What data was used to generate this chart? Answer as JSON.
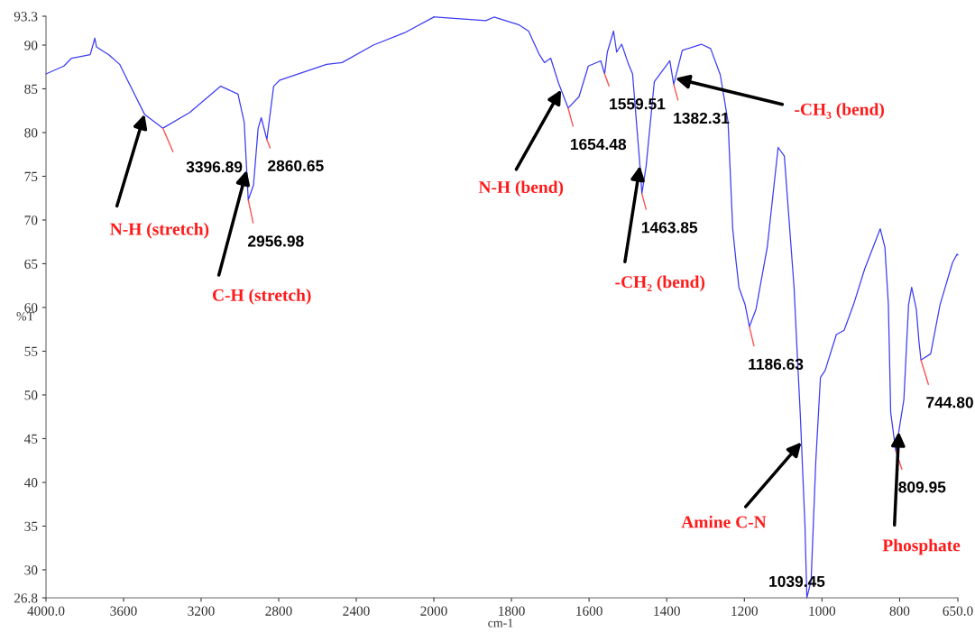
{
  "chart_data": [
    {
      "type": "line",
      "ylabel": "%T",
      "xlim": [
        4000,
        2000
      ],
      "ylim": [
        26.8,
        93.3
      ],
      "xticks": [
        {
          "value": 4000,
          "label": "4000.0"
        },
        3600,
        3200,
        2800,
        2400
      ],
      "yticks": [
        26.8,
        30,
        35,
        40,
        45,
        50,
        55,
        60,
        65,
        70,
        75,
        80,
        85,
        90,
        93.3
      ],
      "grid": false,
      "line_style": "solid",
      "marker": "none",
      "series": [
        {
          "color": "#3c3cf5",
          "x": [
            4000,
            3908,
            3868,
            3772,
            3748,
            3740,
            3676,
            3620,
            3580,
            3492,
            3397,
            3259,
            3099,
            3010,
            2978,
            2957,
            2930,
            2906,
            2890,
            2861,
            2826,
            2794,
            2553,
            2473,
            2312,
            2152,
            2000
          ],
          "values": [
            86.7,
            87.6,
            88.5,
            88.9,
            90.8,
            89.8,
            88.9,
            87.8,
            86.0,
            82.1,
            80.5,
            82.3,
            85.3,
            84.4,
            81.2,
            72.3,
            74.0,
            80.5,
            81.7,
            79.2,
            85.3,
            86.0,
            87.8,
            88.0,
            90.0,
            91.4,
            93.2
          ]
        }
      ],
      "annotations": [
        {
          "text": "3396.89",
          "x": 3397,
          "y": 80.5
        },
        {
          "text": "2956.98",
          "x": 2957,
          "y": 72.3
        },
        {
          "text": "2860.65",
          "x": 2861,
          "y": 79.2
        },
        {
          "text": "N-H (stretch)",
          "x": 3492,
          "y": 82.1
        },
        {
          "text": "C-H (stretch)",
          "x": 2965,
          "y": 75.7
        }
      ]
    },
    {
      "type": "line",
      "xlabel": "cm-1",
      "xlim": [
        2000,
        650
      ],
      "ylim": [
        26.8,
        93.3
      ],
      "xticks": [
        2000,
        1800,
        1600,
        1400,
        1200,
        1000,
        800,
        {
          "value": 650,
          "label": "650.0"
        }
      ],
      "tick_labels": "x",
      "grid": false,
      "line_style": "solid",
      "marker": "none",
      "series": [
        {
          "color": "#3c3cf5",
          "x": [
            2000,
            1996,
            1931,
            1866,
            1845,
            1780,
            1756,
            1728,
            1715,
            1699,
            1679,
            1654,
            1626,
            1602,
            1570,
            1560,
            1553,
            1537,
            1529,
            1516,
            1500,
            1488,
            1469,
            1464,
            1453,
            1432,
            1392,
            1382,
            1360,
            1311,
            1287,
            1262,
            1242,
            1230,
            1222,
            1214,
            1198,
            1187,
            1170,
            1141,
            1113,
            1097,
            1072,
            1064,
            1056,
            1044,
            1039,
            1028,
            1016,
            1004,
            992,
            963,
            943,
            919,
            890,
            850,
            838,
            829,
            823,
            810,
            789,
            777,
            769,
            757,
            750,
            745,
            720,
            696,
            664,
            652,
            650
          ],
          "values": [
            93.2,
            93.2,
            93.0,
            92.8,
            93.2,
            92.3,
            91.6,
            88.9,
            88.0,
            88.5,
            85.7,
            82.8,
            84.1,
            87.6,
            88.2,
            86.7,
            89.2,
            91.6,
            89.2,
            90.1,
            88.0,
            86.7,
            76.2,
            73.0,
            76.2,
            85.8,
            88.2,
            85.5,
            89.4,
            90.1,
            89.6,
            86.6,
            81.2,
            69.0,
            65.5,
            62.3,
            60.3,
            57.8,
            59.8,
            66.9,
            78.3,
            77.3,
            62.3,
            54.9,
            47.8,
            35.2,
            26.8,
            28.8,
            42.4,
            52.0,
            52.8,
            56.9,
            57.4,
            60.3,
            64.4,
            69.0,
            66.9,
            60.3,
            48.0,
            43.6,
            49.5,
            60.3,
            62.3,
            59.8,
            56.0,
            54.0,
            54.7,
            60.3,
            65.1,
            66.1,
            66.0
          ]
        }
      ],
      "annotations": [
        {
          "text": "1654.48",
          "x": 1654,
          "y": 82.8
        },
        {
          "text": "1559.51",
          "x": 1560,
          "y": 86.7
        },
        {
          "text": "1463.85",
          "x": 1464,
          "y": 73.0
        },
        {
          "text": "1382.31",
          "x": 1382,
          "y": 85.5
        },
        {
          "text": "1186.63",
          "x": 1187,
          "y": 57.8
        },
        {
          "text": "1039.45",
          "x": 1039,
          "y": 26.8
        },
        {
          "text": "809.95",
          "x": 810,
          "y": 43.6
        },
        {
          "text": "744.80",
          "x": 745,
          "y": 54.0
        },
        {
          "text": "N-H (bend)",
          "x": 1672,
          "y": 84.9
        },
        {
          "text": "-CH₂ (bend)",
          "x": 1469,
          "y": 76.2
        },
        {
          "text": "-CH₃ (bend)",
          "x": 1378,
          "y": 86.2
        },
        {
          "text": "Amine C-N",
          "x": 1053,
          "y": 44.6
        },
        {
          "text": "Phosphate",
          "x": 802,
          "y": 45.8
        }
      ]
    }
  ]
}
